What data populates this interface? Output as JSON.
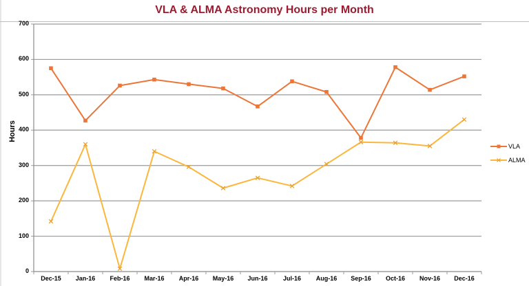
{
  "chart_data": {
    "type": "line",
    "title": "VLA & ALMA Astronomy Hours per Month",
    "xlabel": "",
    "ylabel": "Hours",
    "ylim": [
      0,
      700
    ],
    "yticks": [
      "0",
      "100",
      "200",
      "300",
      "400",
      "500",
      "600",
      "700"
    ],
    "grid": true,
    "legend_position": "right",
    "categories": [
      "Dec-15",
      "Jan-16",
      "Feb-16",
      "Mar-16",
      "Apr-16",
      "May-16",
      "Jun-16",
      "Jul-16",
      "Aug-16",
      "Sep-16",
      "Oct-16",
      "Nov-16",
      "Dec-16"
    ],
    "series": [
      {
        "name": "VLA",
        "color": "#ec7637",
        "marker": "square",
        "values": [
          575,
          427,
          526,
          543,
          530,
          518,
          467,
          538,
          508,
          378,
          578,
          514,
          552
        ]
      },
      {
        "name": "ALMA",
        "color": "#fbb63b",
        "marker": "x",
        "values": [
          142,
          360,
          8,
          340,
          296,
          236,
          265,
          242,
          304,
          366,
          364,
          355,
          430
        ]
      }
    ]
  }
}
